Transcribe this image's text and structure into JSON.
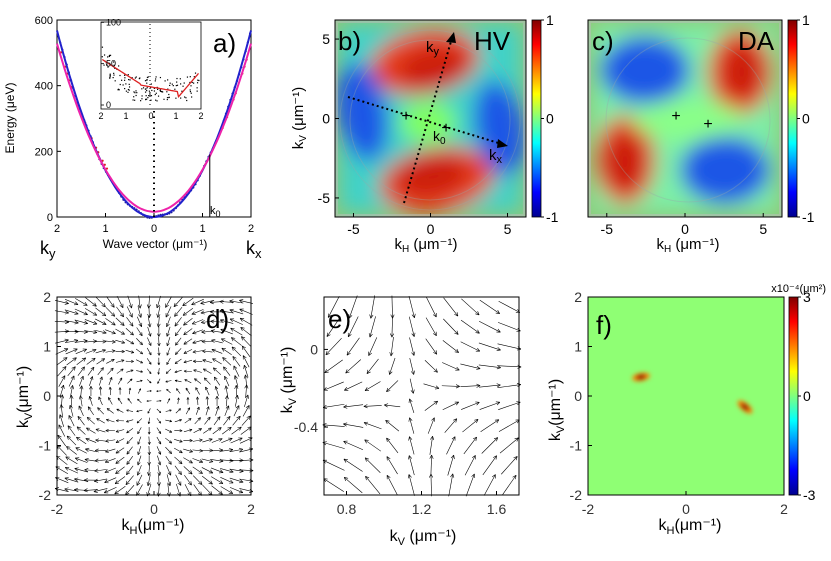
{
  "chart_data": [
    {
      "id": "a",
      "type": "scatter",
      "panel_label": "a)",
      "ylabel": "Energy (μeV)",
      "xlabel": "Wave vector (μm⁻¹)",
      "x_left_label": "k",
      "x_left_sub": "y",
      "x_right_label": "k",
      "x_right_sub": "x",
      "x_ticks": [
        "2",
        "1",
        "0",
        "1",
        "2"
      ],
      "y_ticks": [
        "0",
        "200",
        "400",
        "600"
      ],
      "ylim": [
        0,
        600
      ],
      "xlim": [
        -2,
        2
      ],
      "marker_label": "k",
      "marker_sub": "0",
      "marker_x": 1.15,
      "series": [
        {
          "name": "blue fit",
          "color": "#2222cc",
          "curvature": 142,
          "offset": 0
        },
        {
          "name": "magenta fit",
          "color": "#ee22aa",
          "curvature": 128,
          "offset": 16
        }
      ],
      "inset": {
        "x_ticks": [
          "2",
          "1",
          "0",
          "1",
          "2"
        ],
        "y_ticks": [
          "0",
          "50",
          "100"
        ],
        "ylim": [
          0,
          100
        ],
        "fit_color": "#dd2222"
      }
    },
    {
      "id": "b",
      "type": "heatmap",
      "panel_label": "b)",
      "title": "HV",
      "xlabel": "k",
      "xlabel_sub": "H",
      "xlabel_unit": " (μm⁻¹)",
      "ylabel": "k",
      "ylabel_sub": "V",
      "ylabel_unit": " (μm⁻¹)",
      "x_ticks": [
        "-5",
        "0",
        "5"
      ],
      "y_ticks": [
        "5",
        "0",
        "-5"
      ],
      "xlim": [
        -6.2,
        6.2
      ],
      "annotations": [
        "k",
        "k",
        "k"
      ],
      "annotation_subs": [
        "y",
        "0",
        "x"
      ],
      "colorbar_ticks": [
        "1",
        "0",
        "-1"
      ]
    },
    {
      "id": "c",
      "type": "heatmap",
      "panel_label": "c)",
      "title": "DA",
      "xlabel": "k",
      "xlabel_sub": "H",
      "xlabel_unit": " (μm⁻¹)",
      "x_ticks": [
        "-5",
        "0",
        "5"
      ],
      "colorbar_ticks": [
        "1",
        "0",
        "-1"
      ]
    },
    {
      "id": "d",
      "type": "scatter",
      "panel_label": "d)",
      "xlabel": "k",
      "xlabel_sub": "H",
      "xlabel_unit": "(μm⁻¹)",
      "ylabel": "k",
      "ylabel_sub": "V",
      "ylabel_unit": "(μm⁻¹)",
      "x_ticks": [
        "-2",
        "0",
        "2"
      ],
      "y_ticks": [
        "2",
        "1",
        "0",
        "-1",
        "-2"
      ],
      "xlim": [
        -2,
        2
      ],
      "ylim": [
        -2,
        2
      ]
    },
    {
      "id": "e",
      "type": "scatter",
      "panel_label": "e)",
      "xlabel": "k",
      "xlabel_sub": "V",
      "xlabel_unit": " (μm⁻¹)",
      "ylabel": "k",
      "ylabel_sub": "V",
      "ylabel_unit": " (μm⁻¹)",
      "x_ticks": [
        "0.8",
        "1.2",
        "1.6"
      ],
      "y_ticks": [
        "0",
        "-0.4"
      ],
      "xlim": [
        0.68,
        1.72
      ],
      "ylim": [
        -0.75,
        0.27
      ]
    },
    {
      "id": "f",
      "type": "heatmap",
      "panel_label": "f)",
      "xlabel": "k",
      "xlabel_sub": "H",
      "xlabel_unit": "(μm⁻¹)",
      "ylabel": "k",
      "ylabel_sub": "V",
      "ylabel_unit": "(μm⁻¹)",
      "x_ticks": [
        "-2",
        "0",
        "2"
      ],
      "y_ticks": [
        "2",
        "1",
        "0",
        "-1",
        "-2"
      ],
      "colorbar_title": "x10⁻⁴(μm²)",
      "colorbar_ticks": [
        "3",
        "0",
        "-3"
      ],
      "peaks": [
        {
          "kx": -0.9,
          "ky": 0.35,
          "sign": 1
        },
        {
          "kx": 1.05,
          "ky": -0.25,
          "sign": 1
        }
      ]
    }
  ]
}
